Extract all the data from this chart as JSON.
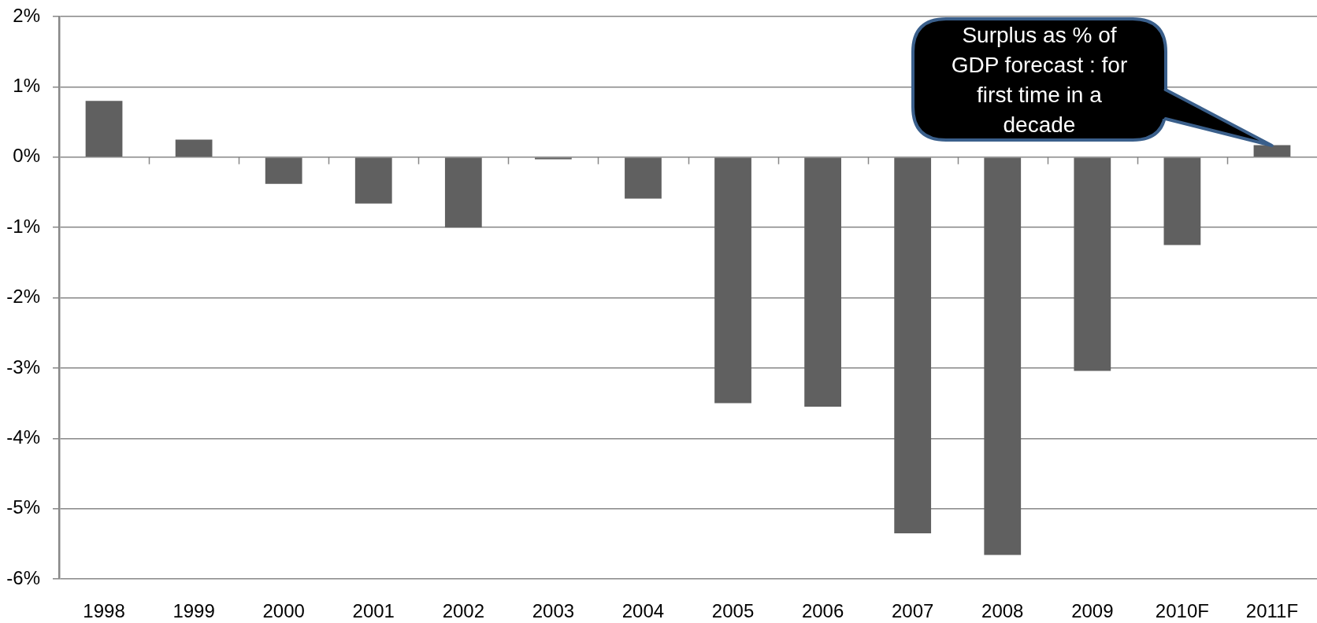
{
  "chart_data": {
    "type": "bar",
    "categories": [
      "1998",
      "1999",
      "2000",
      "2001",
      "2002",
      "2003",
      "2004",
      "2005",
      "2006",
      "2007",
      "2008",
      "2009",
      "2010F",
      "2011F"
    ],
    "values": [
      0.8,
      0.25,
      -0.38,
      -0.66,
      -1.0,
      -0.03,
      -0.59,
      -3.5,
      -3.55,
      -5.35,
      -5.66,
      -3.04,
      -1.25,
      0.17
    ],
    "color": "#606060",
    "ylim": [
      -6,
      2
    ],
    "yticks": [
      {
        "value": -6,
        "label": "-6%"
      },
      {
        "value": -5,
        "label": "-5%"
      },
      {
        "value": -4,
        "label": "-4%"
      },
      {
        "value": -3,
        "label": "-3%"
      },
      {
        "value": -2,
        "label": "-2%"
      },
      {
        "value": -1,
        "label": "-1%"
      },
      {
        "value": 0,
        "label": "0%"
      },
      {
        "value": 1,
        "label": "1%"
      },
      {
        "value": 2,
        "label": "2%"
      }
    ],
    "grid": "y",
    "annotations": [
      {
        "text": "Surplus as % of GDP forecast : for first time in a decade",
        "x": "2011F",
        "y": 0.17
      }
    ]
  }
}
